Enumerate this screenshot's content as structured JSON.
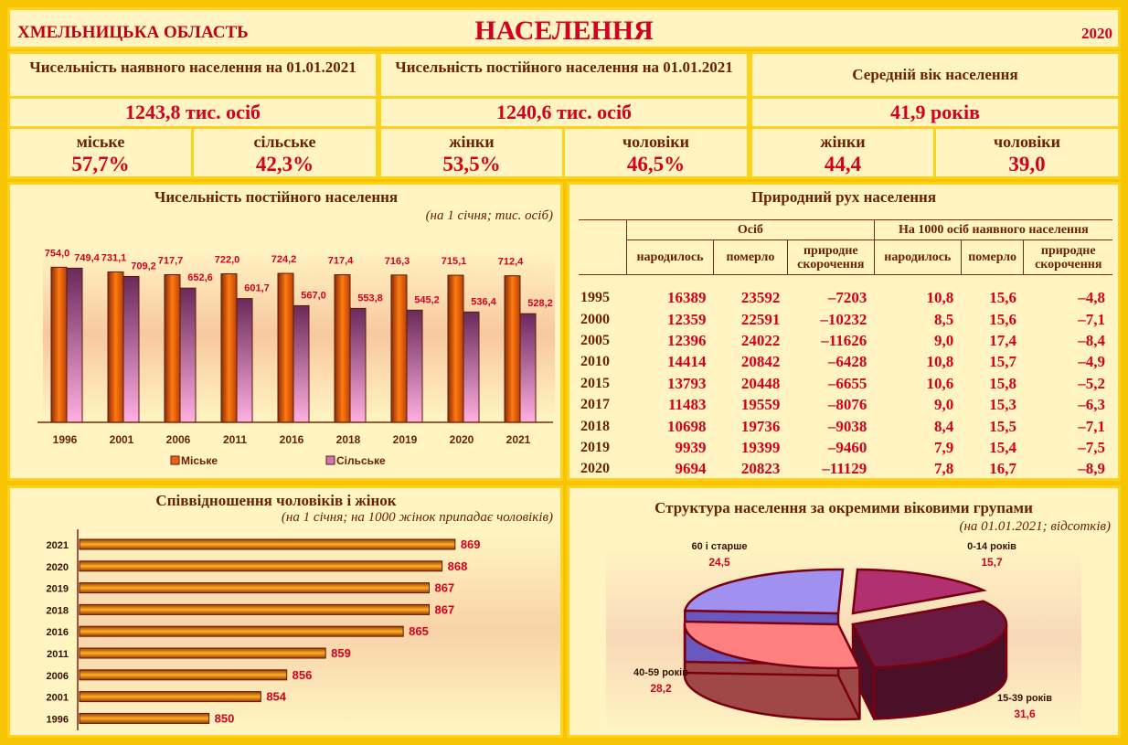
{
  "header": {
    "region": "ХМЕЛЬНИЦЬКА ОБЛАСТЬ",
    "title": "НАСЕЛЕННЯ",
    "year": "2020"
  },
  "stats": {
    "present": {
      "title": "Чисельність наявного населення на 01.01.2021",
      "total": "1243,8 тис. осіб",
      "a_label": "міське",
      "a_value": "57,7%",
      "b_label": "сільське",
      "b_value": "42,3%"
    },
    "permanent": {
      "title": "Чисельність постійного населення на 01.01.2021",
      "total": "1240,6 тис. осіб",
      "a_label": "жінки",
      "a_value": "53,5%",
      "b_label": "чоловіки",
      "b_value": "46,5%"
    },
    "age": {
      "title": "Середній вік населення",
      "total": "41,9 років",
      "a_label": "жінки",
      "a_value": "44,4",
      "b_label": "чоловіки",
      "b_value": "39,0"
    }
  },
  "chart_data": [
    {
      "type": "bar",
      "title": "Чисельність постійного населення",
      "subtitle": "(на 1 січня; тис. осіб)",
      "categories": [
        "1996",
        "2001",
        "2006",
        "2011",
        "2016",
        "2018",
        "2019",
        "2020",
        "2021"
      ],
      "series": [
        {
          "name": "Міське",
          "values": [
            754.0,
            731.1,
            717.7,
            722.0,
            724.2,
            717.4,
            716.3,
            715.1,
            712.4
          ],
          "labels": [
            "754,0",
            "731,1",
            "717,7",
            "722,0",
            "724,2",
            "717,4",
            "716,3",
            "715,1",
            "712,4"
          ]
        },
        {
          "name": "Сільське",
          "values": [
            749.4,
            709.2,
            652.6,
            601.7,
            567.0,
            553.8,
            545.2,
            536.4,
            528.2
          ],
          "labels": [
            "749,4",
            "709,2",
            "652,6",
            "601,7",
            "567,0",
            "553,8",
            "545,2",
            "536,4",
            "528,2"
          ]
        }
      ],
      "ylim": [
        0,
        800
      ],
      "legend": "bottom",
      "colors": {
        "urban": "#e8641a",
        "rural": "#c878b8"
      }
    },
    {
      "type": "bar",
      "orientation": "horizontal",
      "title": "Співвідношення чоловіків і жінок",
      "subtitle": "(на 1 січня; на 1000 жінок припадає чоловіків)",
      "categories": [
        "2021",
        "2020",
        "2019",
        "2018",
        "2016",
        "2011",
        "2006",
        "2001",
        "1996"
      ],
      "values": [
        869,
        868,
        867,
        867,
        865,
        859,
        856,
        854,
        850
      ],
      "labels": [
        "869",
        "868",
        "867",
        "867",
        "865",
        "859",
        "856",
        "854",
        "850"
      ],
      "xlim": [
        840,
        870
      ],
      "colors": {
        "bar": "#e09020"
      }
    },
    {
      "type": "pie",
      "title": "Структура населення за окремими віковими групами",
      "subtitle": "(на 01.01.2021; відсотків)",
      "slices": [
        {
          "label": "0-14 років",
          "value": 15.7,
          "value_label": "15,7",
          "color": "#b03070"
        },
        {
          "label": "15-39 років",
          "value": 31.6,
          "value_label": "31,6",
          "color": "#6a1a40"
        },
        {
          "label": "40-59 років",
          "value": 28.2,
          "value_label": "28,2",
          "color": "#ff8080"
        },
        {
          "label": "60 і старше",
          "value": 24.5,
          "value_label": "24,5",
          "color": "#a090f0"
        }
      ]
    },
    {
      "type": "table",
      "title": "Природний рух населення",
      "group_headers": [
        "Осіб",
        "На 1000 осіб наявного населення"
      ],
      "columns": [
        "народилось",
        "померло",
        "природне скорочення",
        "народилось",
        "померло",
        "природне скорочення"
      ],
      "rows": [
        {
          "year": "1995",
          "cells": [
            "16389",
            "23592",
            "–7203",
            "10,8",
            "15,6",
            "–4,8"
          ]
        },
        {
          "year": "2000",
          "cells": [
            "12359",
            "22591",
            "–10232",
            "8,5",
            "15,6",
            "–7,1"
          ]
        },
        {
          "year": "2005",
          "cells": [
            "12396",
            "24022",
            "–11626",
            "9,0",
            "17,4",
            "–8,4"
          ]
        },
        {
          "year": "2010",
          "cells": [
            "14414",
            "20842",
            "–6428",
            "10,8",
            "15,7",
            "–4,9"
          ]
        },
        {
          "year": "2015",
          "cells": [
            "13793",
            "20448",
            "–6655",
            "10,6",
            "15,8",
            "–5,2"
          ]
        },
        {
          "year": "2017",
          "cells": [
            "11483",
            "19559",
            "–8076",
            "9,0",
            "15,3",
            "–6,3"
          ]
        },
        {
          "year": "2018",
          "cells": [
            "10698",
            "19736",
            "–9038",
            "8,4",
            "15,5",
            "–7,1"
          ]
        },
        {
          "year": "2019",
          "cells": [
            "9939",
            "19399",
            "–9460",
            "7,9",
            "15,4",
            "–7,5"
          ]
        },
        {
          "year": "2020",
          "cells": [
            "9694",
            "20823",
            "–11129",
            "7,8",
            "16,7",
            "–8,9"
          ]
        }
      ]
    }
  ]
}
